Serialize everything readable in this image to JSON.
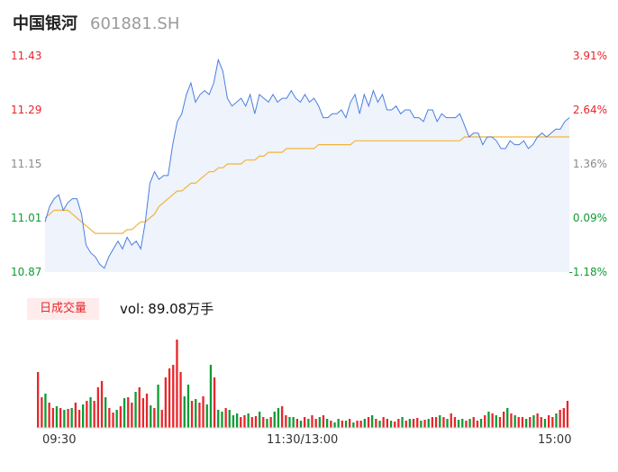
{
  "header": {
    "name": "中国银河",
    "code": "601881.SH"
  },
  "price_axis": [
    "11.43",
    "11.29",
    "11.15",
    "11.01",
    "10.87"
  ],
  "pct_axis": [
    "3.91%",
    "2.64%",
    "1.36%",
    "0.09%",
    "-1.18%"
  ],
  "volume_panel": {
    "tab_label": "日成交量",
    "vol_label": "vol:",
    "vol_value": "89.08万手"
  },
  "x_axis_labels": [
    "09:30",
    "11:30/13:00",
    "15:00"
  ],
  "colors": {
    "price_line": "#4a7fe0",
    "avg_line": "#f2b53b",
    "up": "#e8262b",
    "down": "#0e9b34",
    "fill": "#eef3fc"
  },
  "chart_data": [
    {
      "type": "line",
      "series": [],
      "ylim": [
        10.87,
        11.43
      ],
      "price": [
        11.0,
        11.04,
        11.06,
        11.07,
        11.03,
        11.05,
        11.06,
        11.06,
        11.02,
        10.94,
        10.92,
        10.91,
        10.89,
        10.88,
        10.91,
        10.93,
        10.95,
        10.93,
        10.96,
        10.94,
        10.95,
        10.93,
        11.0,
        11.1,
        11.13,
        11.11,
        11.12,
        11.12,
        11.2,
        11.26,
        11.28,
        11.33,
        11.36,
        11.31,
        11.33,
        11.34,
        11.33,
        11.36,
        11.42,
        11.39,
        11.32,
        11.3,
        11.31,
        11.32,
        11.3,
        11.33,
        11.28,
        11.33,
        11.32,
        11.31,
        11.33,
        11.31,
        11.32,
        11.32,
        11.34,
        11.32,
        11.31,
        11.33,
        11.31,
        11.32,
        11.3,
        11.27,
        11.27,
        11.28,
        11.28,
        11.29,
        11.27,
        11.31,
        11.33,
        11.28,
        11.33,
        11.3,
        11.34,
        11.31,
        11.33,
        11.29,
        11.29,
        11.3,
        11.28,
        11.29,
        11.29,
        11.27,
        11.27,
        11.26,
        11.29,
        11.29,
        11.26,
        11.28,
        11.27,
        11.27,
        11.27,
        11.28,
        11.25,
        11.22,
        11.23,
        11.23,
        11.2,
        11.22,
        11.22,
        11.21,
        11.19,
        11.19,
        11.21,
        11.2,
        11.2,
        11.21,
        11.19,
        11.2,
        11.22,
        11.23,
        11.22,
        11.23,
        11.24,
        11.24,
        11.26,
        11.27
      ],
      "avg": [
        11.01,
        11.02,
        11.03,
        11.03,
        11.03,
        11.03,
        11.02,
        11.01,
        11.0,
        10.99,
        10.98,
        10.97,
        10.97,
        10.97,
        10.97,
        10.97,
        10.97,
        10.97,
        10.98,
        10.98,
        10.99,
        11.0,
        11.0,
        11.01,
        11.02,
        11.04,
        11.05,
        11.06,
        11.07,
        11.08,
        11.08,
        11.09,
        11.1,
        11.1,
        11.11,
        11.12,
        11.13,
        11.13,
        11.14,
        11.14,
        11.15,
        11.15,
        11.15,
        11.15,
        11.16,
        11.16,
        11.16,
        11.17,
        11.17,
        11.18,
        11.18,
        11.18,
        11.18,
        11.19,
        11.19,
        11.19,
        11.19,
        11.19,
        11.19,
        11.19,
        11.2,
        11.2,
        11.2,
        11.2,
        11.2,
        11.2,
        11.2,
        11.2,
        11.21,
        11.21,
        11.21,
        11.21,
        11.21,
        11.21,
        11.21,
        11.21,
        11.21,
        11.21,
        11.21,
        11.21,
        11.21,
        11.21,
        11.21,
        11.21,
        11.21,
        11.21,
        11.21,
        11.21,
        11.21,
        11.21,
        11.21,
        11.21,
        11.22,
        11.22,
        11.22,
        11.22,
        11.22,
        11.22,
        11.22,
        11.22,
        11.22,
        11.22,
        11.22,
        11.22,
        11.22,
        11.22,
        11.22,
        11.22,
        11.22,
        11.22,
        11.22,
        11.22,
        11.22,
        11.22,
        11.22,
        11.22
      ]
    },
    {
      "type": "bar",
      "series": [],
      "volume": [
        62,
        34,
        38,
        28,
        22,
        24,
        22,
        20,
        21,
        22,
        28,
        20,
        26,
        30,
        34,
        30,
        45,
        52,
        34,
        22,
        17,
        20,
        24,
        33,
        34,
        28,
        40,
        45,
        33,
        38,
        25,
        22,
        48,
        20,
        56,
        66,
        70,
        98,
        62,
        35,
        48,
        30,
        32,
        28,
        35,
        26,
        70,
        56,
        20,
        18,
        22,
        20,
        14,
        16,
        12,
        14,
        16,
        12,
        13,
        18,
        12,
        10,
        12,
        18,
        22,
        24,
        14,
        12,
        12,
        10,
        8,
        12,
        10,
        14,
        10,
        12,
        14,
        10,
        8,
        6,
        10,
        8,
        8,
        10,
        6,
        8,
        8,
        10,
        12,
        14,
        10,
        8,
        12,
        10,
        8,
        7,
        10,
        12,
        8,
        10,
        10,
        11,
        8,
        9,
        10,
        12,
        12,
        14,
        12,
        10,
        16,
        12,
        9,
        10,
        8,
        10,
        12,
        8,
        10,
        14,
        18,
        16,
        14,
        12,
        18,
        22,
        16,
        14,
        12,
        12,
        10,
        12,
        14,
        16,
        12,
        10,
        14,
        12,
        16,
        20,
        22,
        30
      ],
      "up": [
        1,
        1,
        0,
        1,
        1,
        0,
        1,
        0,
        1,
        0,
        1,
        1,
        0,
        1,
        0,
        1,
        1,
        1,
        0,
        1,
        1,
        0,
        1,
        0,
        1,
        1,
        0,
        1,
        1,
        1,
        0,
        1,
        0,
        1,
        1,
        1,
        1,
        1,
        1,
        0,
        0,
        1,
        0,
        1,
        1,
        0,
        0,
        1,
        0,
        0,
        1,
        0,
        0,
        0,
        1,
        1,
        0,
        1,
        1,
        0,
        1,
        0,
        1,
        0,
        0,
        1,
        1,
        0,
        0,
        1,
        0,
        1,
        0,
        1,
        1,
        0,
        1,
        0,
        1,
        0,
        0,
        1,
        0,
        1,
        0,
        1,
        1,
        0,
        1,
        0,
        1,
        0,
        1,
        1,
        0,
        1,
        1,
        0,
        1,
        0,
        1,
        1,
        0,
        1,
        0,
        1,
        1,
        0,
        1,
        0,
        1,
        1,
        0,
        0,
        1,
        0,
        1,
        1,
        0,
        1,
        0,
        1,
        0,
        1,
        1,
        0,
        1,
        0,
        1,
        1,
        0,
        1,
        0,
        1,
        1,
        0,
        1,
        1,
        0,
        1,
        1,
        1
      ]
    }
  ]
}
